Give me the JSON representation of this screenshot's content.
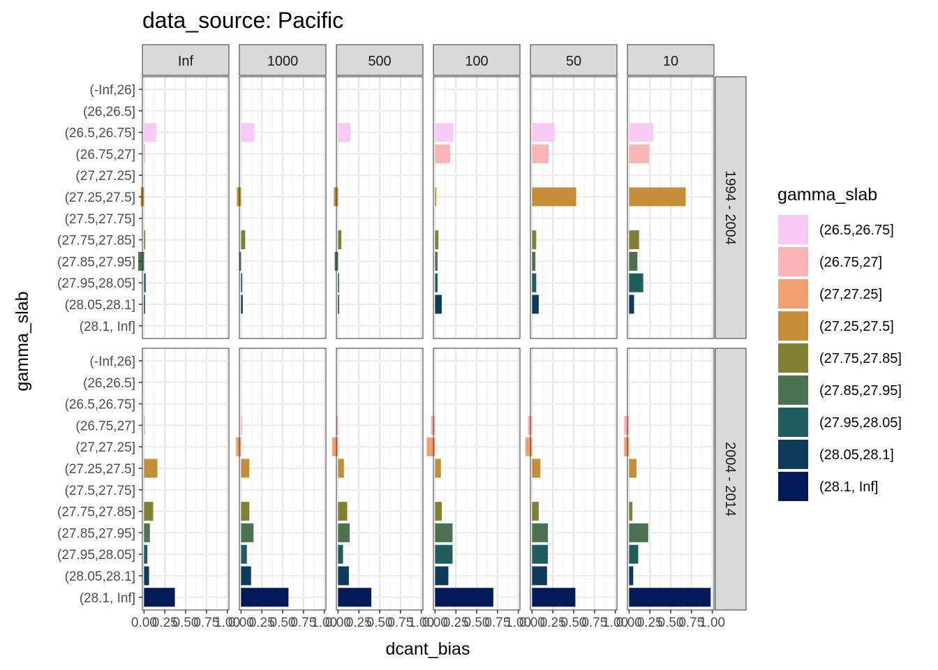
{
  "chart_data": {
    "type": "bar",
    "orientation": "horizontal",
    "title": "data_source: Pacific",
    "xlabel": "dcant_bias",
    "ylabel": "gamma_slab",
    "xlim": [
      -0.02,
      1.02
    ],
    "xticks": [
      0.0,
      0.25,
      0.5,
      0.75,
      1.0
    ],
    "xtick_labels": [
      "0.00",
      "0.25",
      "0.50",
      "0.75",
      "1.00"
    ],
    "grid": true,
    "legend_position": "right",
    "legend_title": "gamma_slab",
    "categories": [
      "(-Inf,26]",
      "(26,26.5]",
      "(26.5,26.75]",
      "(26.75,27]",
      "(27,27.25]",
      "(27.25,27.5]",
      "(27.5,27.75]",
      "(27.75,27.85]",
      "(27.85,27.95]",
      "(27.95,28.05]",
      "(28.05,28.1]",
      "(28.1, Inf]"
    ],
    "legend_items": [
      {
        "label": "(26.5,26.75]",
        "color": "#f8c9f5"
      },
      {
        "label": "(26.75,27]",
        "color": "#fab4b4"
      },
      {
        "label": "(27,27.25]",
        "color": "#f19f6f"
      },
      {
        "label": "(27.25,27.5]",
        "color": "#c48d38"
      },
      {
        "label": "(27.75,27.85]",
        "color": "#818133"
      },
      {
        "label": "(27.85,27.95]",
        "color": "#4d7250"
      },
      {
        "label": "(27.95,28.05]",
        "color": "#215c5e"
      },
      {
        "label": "(28.05,28.1]",
        "color": "#0e3a5c"
      },
      {
        "label": "(28.1, Inf]",
        "color": "#031a56"
      }
    ],
    "col_facets": [
      "Inf",
      "1000",
      "500",
      "100",
      "50",
      "10"
    ],
    "row_facets": [
      "1994 - 2004",
      "2004 - 2014"
    ],
    "panels": [
      {
        "row": "1994 - 2004",
        "col": "Inf",
        "values": {
          "(26.5,26.75]": 0.15,
          "(26.75,27]": 0.01,
          "(27.25,27.5]": -0.04,
          "(27.75,27.85]": 0.015,
          "(27.85,27.95]": -0.07,
          "(27.95,28.05]": 0.02,
          "(28.05,28.1]": 0.012
        }
      },
      {
        "row": "1994 - 2004",
        "col": "1000",
        "values": {
          "(26.5,26.75]": 0.16,
          "(27.25,27.5]": -0.05,
          "(27.75,27.85]": 0.05,
          "(27.85,27.95]": -0.02,
          "(27.95,28.05]": 0.015,
          "(28.05,28.1]": 0.02
        }
      },
      {
        "row": "1994 - 2004",
        "col": "500",
        "values": {
          "(26.5,26.75]": 0.15,
          "(27.25,27.5]": -0.05,
          "(27.75,27.85]": 0.04,
          "(27.85,27.95]": -0.04,
          "(27.95,28.05]": 0.01,
          "(28.05,28.1]": 0.01
        }
      },
      {
        "row": "1994 - 2004",
        "col": "100",
        "values": {
          "(26.5,26.75]": 0.22,
          "(26.75,27]": 0.18,
          "(27.25,27.5]": 0.015,
          "(27.75,27.85]": 0.04,
          "(27.85,27.95]": 0.03,
          "(27.95,28.05]": 0.03,
          "(28.05,28.1]": 0.08
        }
      },
      {
        "row": "1994 - 2004",
        "col": "50",
        "values": {
          "(26.5,26.75]": 0.27,
          "(26.75,27]": 0.2,
          "(27.25,27.5]": 0.53,
          "(27.75,27.85]": 0.05,
          "(27.85,27.95]": 0.04,
          "(27.95,28.05]": 0.05,
          "(28.05,28.1]": 0.08
        }
      },
      {
        "row": "1994 - 2004",
        "col": "10",
        "values": {
          "(26.5,26.75]": 0.29,
          "(26.75,27]": 0.24,
          "(27.25,27.5]": 0.68,
          "(27.75,27.85]": 0.12,
          "(27.85,27.95]": 0.1,
          "(27.95,28.05]": 0.17,
          "(28.05,28.1]": 0.06
        }
      },
      {
        "row": "2004 - 2014",
        "col": "Inf",
        "values": {
          "(26.75,27]": 0.01,
          "(27.25,27.5]": 0.16,
          "(27.75,27.85]": 0.11,
          "(27.85,27.95]": 0.07,
          "(27.95,28.05]": 0.04,
          "(28.05,28.1]": 0.06,
          "(28.1, Inf]": 0.37
        }
      },
      {
        "row": "2004 - 2014",
        "col": "1000",
        "values": {
          "(26.75,27]": 0.01,
          "(27,27.25]": -0.06,
          "(27.25,27.5]": 0.1,
          "(27.75,27.85]": 0.1,
          "(27.85,27.95]": 0.15,
          "(27.95,28.05]": 0.07,
          "(28.05,28.1]": 0.12,
          "(28.1, Inf]": 0.57
        }
      },
      {
        "row": "2004 - 2014",
        "col": "500",
        "values": {
          "(26.75,27]": -0.02,
          "(27,27.25]": -0.07,
          "(27.25,27.5]": 0.07,
          "(27.75,27.85]": 0.11,
          "(27.85,27.95]": 0.14,
          "(27.95,28.05]": 0.06,
          "(28.05,28.1]": 0.13,
          "(28.1, Inf]": 0.4
        }
      },
      {
        "row": "2004 - 2014",
        "col": "100",
        "values": {
          "(26.75,27]": -0.05,
          "(27,27.25]": -0.1,
          "(27.25,27.5]": 0.07,
          "(27.75,27.85]": 0.08,
          "(27.85,27.95]": 0.21,
          "(27.95,28.05]": 0.21,
          "(28.05,28.1]": 0.16,
          "(28.1, Inf]": 0.7
        }
      },
      {
        "row": "2004 - 2014",
        "col": "50",
        "values": {
          "(26.75,27]": -0.05,
          "(27,27.25]": -0.08,
          "(27.25,27.5]": 0.1,
          "(27.75,27.85]": 0.08,
          "(27.85,27.95]": 0.19,
          "(27.95,28.05]": 0.19,
          "(28.05,28.1]": 0.18,
          "(28.1, Inf]": 0.52
        }
      },
      {
        "row": "2004 - 2014",
        "col": "10",
        "values": {
          "(26.75,27]": -0.06,
          "(27,27.25]": -0.06,
          "(27.25,27.5]": 0.09,
          "(27.75,27.85]": 0.04,
          "(27.85,27.95]": 0.23,
          "(27.95,28.05]": 0.11,
          "(28.05,28.1]": 0.05,
          "(28.1, Inf]": 0.98
        }
      }
    ]
  }
}
